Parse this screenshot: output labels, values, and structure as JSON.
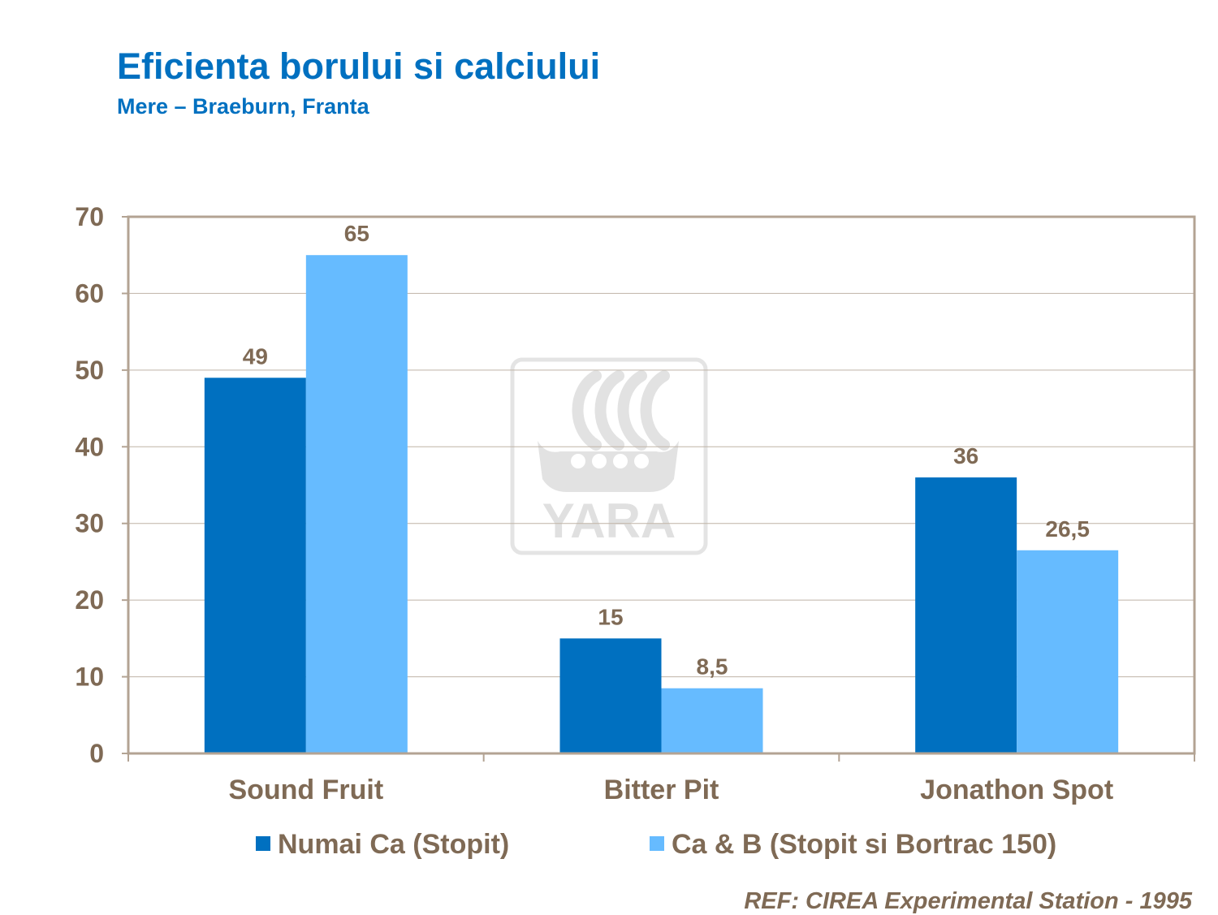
{
  "header": {
    "title": "Eficienta borului si calciului",
    "subtitle": "Mere – Braeburn,  Franta"
  },
  "footer": {
    "reference": "REF: CIREA Experimental  Station  - 1995"
  },
  "watermark": {
    "text": "YARA",
    "icon": "yara-viking-ship-icon"
  },
  "colors": {
    "series1": "#0070c0",
    "series2": "#66bbff",
    "text": "#7f6a55",
    "axis": "#b3a393",
    "grid": "#bfb3a6",
    "title": "#0070c0"
  },
  "chart_data": {
    "type": "bar",
    "title": "Eficienta borului si calciului",
    "subtitle": "Mere – Braeburn,  Franta",
    "categories": [
      "Sound Fruit",
      "Bitter Pit",
      "Jonathon Spot"
    ],
    "series": [
      {
        "name": "Numai Ca (Stopit)",
        "values": [
          49,
          15,
          36
        ],
        "labels": [
          "49",
          "15",
          "36"
        ],
        "color": "#0070c0"
      },
      {
        "name": "Ca & B (Stopit si Bortrac 150)",
        "values": [
          65,
          8.5,
          26.5
        ],
        "labels": [
          "65",
          "8,5",
          "26,5"
        ],
        "color": "#66bbff"
      }
    ],
    "yticks": [
      "0",
      "10",
      "20",
      "30",
      "40",
      "50",
      "60",
      "70"
    ],
    "ylim": [
      0,
      70
    ],
    "grid": true,
    "legend_position": "bottom"
  }
}
